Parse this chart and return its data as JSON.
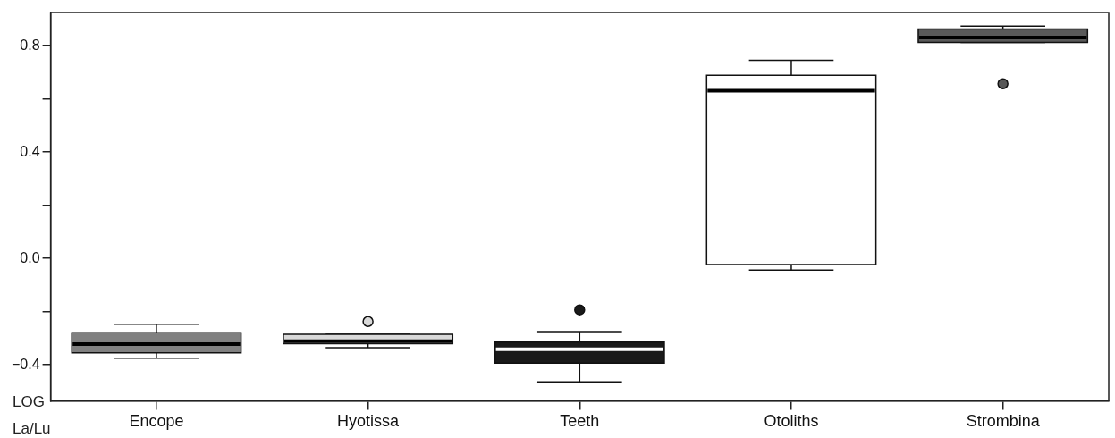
{
  "chart_data": {
    "type": "box",
    "ylabel": "LOG La/Lu",
    "categories": [
      "Encope",
      "Hyotissa",
      "Teeth",
      "Otoliths",
      "Strombina"
    ],
    "colors": [
      "#808080",
      "#d9d9d9",
      "#1a1a1a",
      "#ffffff",
      "#595959"
    ],
    "boxes": [
      {
        "low": -0.375,
        "q1": -0.355,
        "median": -0.322,
        "q3": -0.279,
        "high": -0.247
      },
      {
        "low": -0.335,
        "q1": -0.32,
        "median": -0.311,
        "q3": -0.285,
        "high": -0.285,
        "outliers": [
          -0.237
        ]
      },
      {
        "low": -0.464,
        "q1": -0.393,
        "median": -0.341,
        "q3": -0.314,
        "high": -0.275,
        "outliers": [
          -0.193
        ]
      },
      {
        "low": -0.044,
        "q1": -0.023,
        "median": 0.631,
        "q3": 0.689,
        "high": 0.745
      },
      {
        "low": 0.812,
        "q1": 0.812,
        "median": 0.831,
        "q3": 0.863,
        "high": 0.874,
        "outliers": [
          0.657
        ]
      }
    ],
    "ylim": [
      -0.535,
      0.925
    ],
    "yticks": [
      {
        "value": -0.4,
        "label": "−0.4"
      },
      {
        "value": -0.2,
        "label": null
      },
      {
        "value": 0,
        "label": "0.0"
      },
      {
        "value": 0.2,
        "label": null
      },
      {
        "value": 0.4,
        "label": "0.4"
      },
      {
        "value": 0.6,
        "label": null
      },
      {
        "value": 0.8,
        "label": "0.8"
      }
    ],
    "grid": false,
    "legend": false
  }
}
